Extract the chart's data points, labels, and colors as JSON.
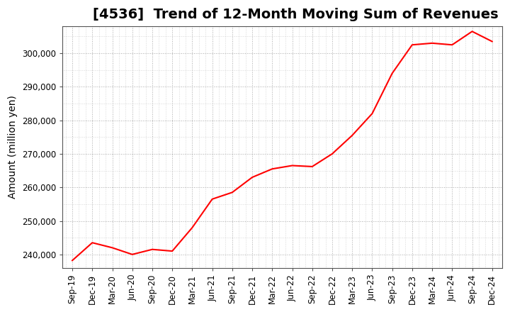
{
  "title": "[4536]  Trend of 12-Month Moving Sum of Revenues",
  "ylabel": "Amount (million yen)",
  "line_color": "#FF0000",
  "background_color": "#FFFFFF",
  "grid_color": "#AAAAAA",
  "ylim": [
    236000,
    308000
  ],
  "yticks": [
    240000,
    250000,
    260000,
    270000,
    280000,
    290000,
    300000
  ],
  "x_labels": [
    "Sep-19",
    "Dec-19",
    "Mar-20",
    "Jun-20",
    "Sep-20",
    "Dec-20",
    "Mar-21",
    "Jun-21",
    "Sep-21",
    "Dec-21",
    "Mar-22",
    "Jun-22",
    "Sep-22",
    "Dec-22",
    "Mar-23",
    "Jun-23",
    "Sep-23",
    "Dec-23",
    "Mar-24",
    "Jun-24",
    "Sep-24",
    "Dec-24"
  ],
  "values": [
    238200,
    243500,
    242000,
    240000,
    241500,
    241000,
    248000,
    256500,
    258500,
    263000,
    265500,
    266500,
    266200,
    270000,
    275500,
    282000,
    294000,
    302500,
    303000,
    302500,
    306500,
    303500
  ],
  "title_fontsize": 14,
  "tick_fontsize": 8.5,
  "ylabel_fontsize": 10
}
